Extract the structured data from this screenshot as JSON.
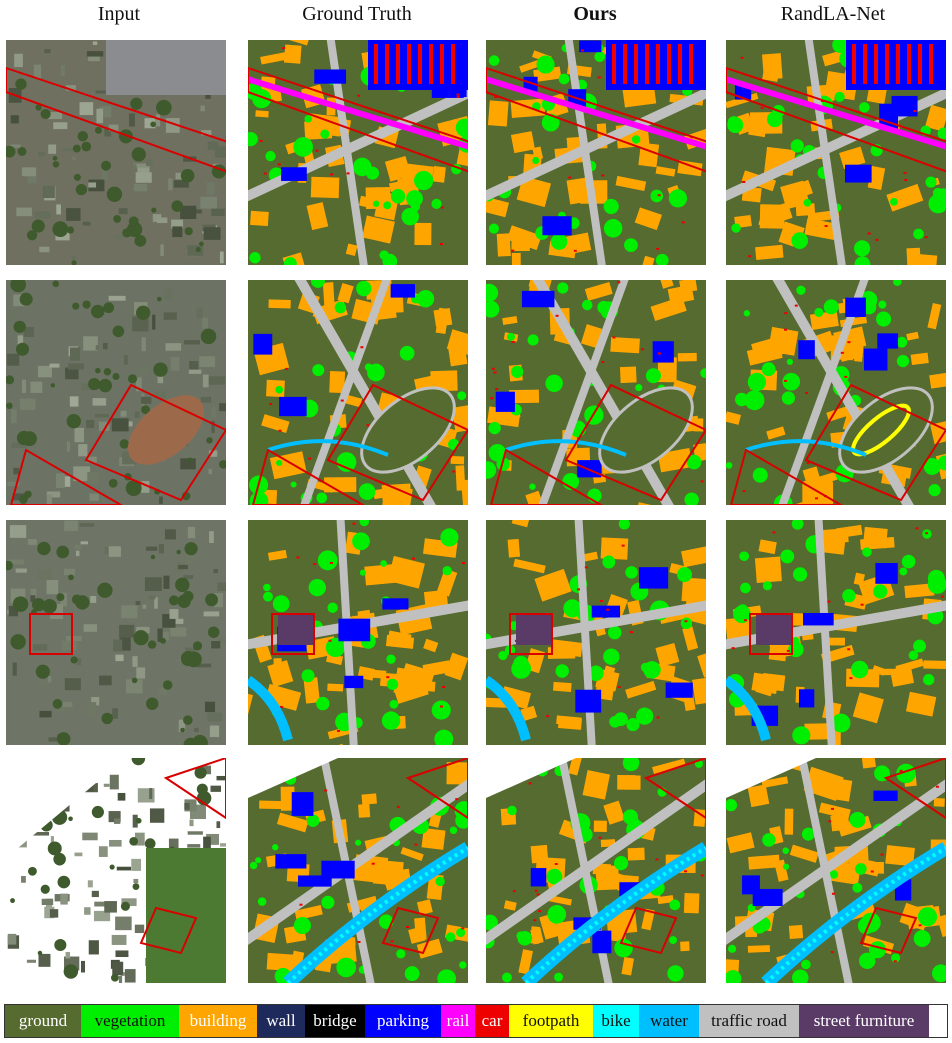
{
  "columns": [
    {
      "label": "Input",
      "bold": false
    },
    {
      "label": "Ground Truth",
      "bold": false
    },
    {
      "label": "Ours",
      "bold": true
    },
    {
      "label": "RandLA-Net",
      "bold": false
    }
  ],
  "legend": [
    {
      "label": "ground",
      "color": "#556b2f",
      "text_color": "#ffffff"
    },
    {
      "label": "vegetation",
      "color": "#00ee00",
      "text_color": "#111111"
    },
    {
      "label": "building",
      "color": "#ffa500",
      "text_color": "#ffffff"
    },
    {
      "label": "wall",
      "color": "#1f2a5c",
      "text_color": "#ffffff"
    },
    {
      "label": "bridge",
      "color": "#000000",
      "text_color": "#ffffff"
    },
    {
      "label": "parking",
      "color": "#0000ff",
      "text_color": "#ffffff"
    },
    {
      "label": "rail",
      "color": "#ff00ff",
      "text_color": "#ffffff"
    },
    {
      "label": "car",
      "color": "#ee0000",
      "text_color": "#ffffff"
    },
    {
      "label": "footpath",
      "color": "#ffff00",
      "text_color": "#111111"
    },
    {
      "label": "bike",
      "color": "#00ffff",
      "text_color": "#111111"
    },
    {
      "label": "water",
      "color": "#00bfff",
      "text_color": "#111111"
    },
    {
      "label": "traffic road",
      "color": "#c0c0c0",
      "text_color": "#111111"
    },
    {
      "label": "street furniture",
      "color": "#5a3a66",
      "text_color": "#ffffff"
    }
  ],
  "highlight_color": "#d90000"
}
